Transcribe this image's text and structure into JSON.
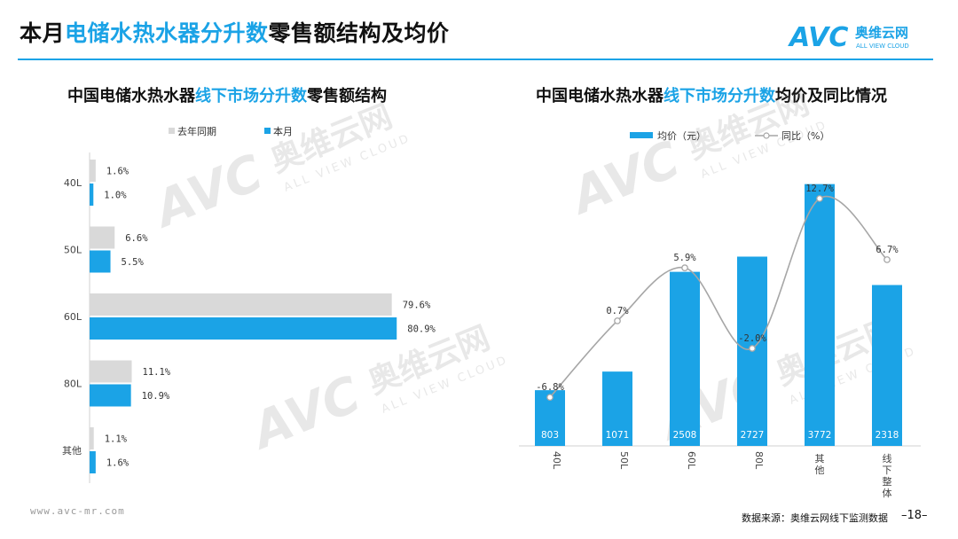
{
  "header": {
    "title_parts": [
      "本月",
      "电储水热水器分升数",
      "零售额结构及均价"
    ],
    "logo_text": "AVC",
    "logo_cn": "奥维云网",
    "logo_en": "ALL VIEW CLOUD"
  },
  "watermark": {
    "brand": "AVC",
    "cn": "奥维云网",
    "en": "ALL VIEW CLOUD"
  },
  "left_chart": {
    "title_parts": [
      "中国电储水热水器",
      "线下市场分升数",
      "零售额结构"
    ]
  },
  "right_chart": {
    "title_parts": [
      "中国电储水热水器",
      "线下市场分升数",
      "均价及同比情况"
    ]
  },
  "footer": {
    "url": "www.avc-mr.com",
    "source": "数据来源：奥维云网线下监测数据",
    "page": "–18–"
  },
  "colors": {
    "accent": "#1ba3e6",
    "previous": "#d9d9d9",
    "line": "#a6a6a6"
  },
  "chart_data": [
    {
      "type": "bar",
      "orientation": "horizontal",
      "categories": [
        "40L",
        "50L",
        "60L",
        "80L",
        "其他"
      ],
      "series": [
        {
          "name": "去年同期",
          "values": [
            1.6,
            6.6,
            79.6,
            11.1,
            1.1
          ],
          "labels": [
            "1.6%",
            "6.6%",
            "79.6%",
            "11.1%",
            "1.1%"
          ]
        },
        {
          "name": "本月",
          "values": [
            1.0,
            5.5,
            80.9,
            10.9,
            1.6
          ],
          "labels": [
            "1.0%",
            "5.5%",
            "80.9%",
            "10.9%",
            "1.6%"
          ]
        }
      ],
      "xlim": [
        0,
        100
      ],
      "legend": "top-left"
    },
    {
      "type": "bar+line",
      "categories": [
        "40L",
        "50L",
        "60L",
        "80L",
        "其他",
        "线下整体"
      ],
      "bar": {
        "name": "均价（元）",
        "values": [
          803,
          1071,
          2508,
          2727,
          3772,
          2318
        ]
      },
      "line": {
        "name": "同比（%）",
        "values": [
          -6.8,
          0.7,
          5.9,
          -2.0,
          12.7,
          6.7
        ],
        "labels": [
          "-6.8%",
          "0.7%",
          "5.9%",
          "-2.0%",
          "12.7%",
          "6.7%"
        ]
      },
      "ylim_bar": [
        0,
        4000
      ],
      "ylim_line": [
        -15,
        15
      ],
      "legend": "top-center"
    }
  ]
}
